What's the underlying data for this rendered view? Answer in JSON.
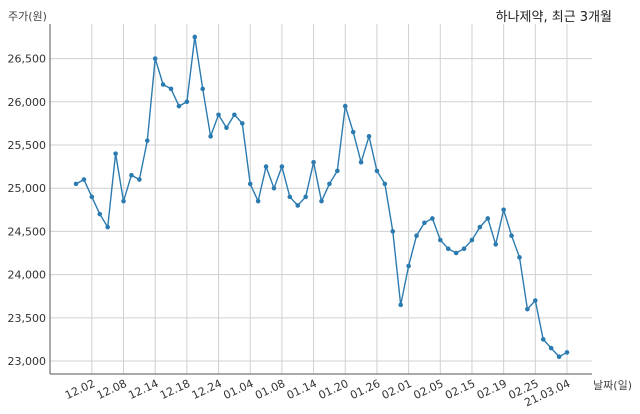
{
  "chart_data": {
    "type": "line",
    "title": "하나제약, 최근 3개월",
    "ylabel": "주가(원)",
    "xlabel": "날짜(일)",
    "ylim": [
      22850,
      26900
    ],
    "yticks": [
      23000,
      23500,
      24000,
      24500,
      25000,
      25500,
      26000,
      26500
    ],
    "ytick_labels": [
      "23,000",
      "23,500",
      "24,000",
      "24,500",
      "25,000",
      "25,500",
      "26,000",
      "26,500"
    ],
    "xtick_labels": [
      "12.02",
      "12.08",
      "12.14",
      "12.18",
      "12.24",
      "01.04",
      "01.08",
      "01.14",
      "01.20",
      "01.26",
      "02.01",
      "02.05",
      "02.15",
      "02.19",
      "02.25",
      "21.03.04"
    ],
    "xtick_indices": [
      2,
      6,
      10,
      14,
      18,
      22,
      26,
      30,
      34,
      38,
      42,
      46,
      50,
      54,
      58,
      62
    ],
    "grid": true,
    "color": "#2b7bb0",
    "series": [
      {
        "values": [
          25050,
          25100,
          24900,
          24700,
          24550,
          25400,
          24850,
          25150,
          25100,
          25550,
          26500,
          26200,
          26150,
          25950,
          26000,
          26750,
          26150,
          25600,
          25850,
          25700,
          25850,
          25750,
          25050,
          24850,
          25250,
          25000,
          25250,
          24900,
          24800,
          24900,
          25300,
          24850,
          25050,
          25200,
          25950,
          25650,
          25300,
          25600,
          25200,
          25050,
          24500,
          23650,
          24100,
          24450,
          24600,
          24650,
          24400,
          24300,
          24250,
          24300,
          24400,
          24550,
          24650,
          24350,
          24750,
          24450,
          24200,
          23600,
          23700,
          23250,
          23150,
          23050,
          23100
        ]
      }
    ]
  }
}
